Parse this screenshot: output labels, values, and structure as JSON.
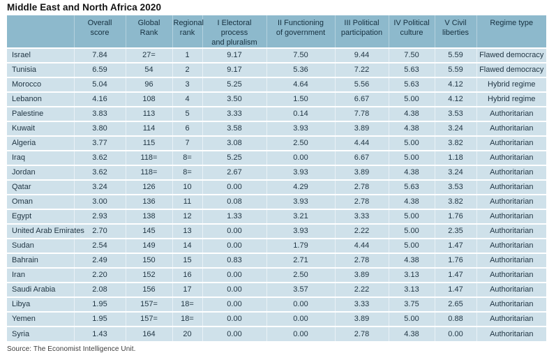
{
  "title": "Middle East and North Africa 2020",
  "source": "Source: The Economist Intelligence Unit.",
  "colors": {
    "header_bg": "#8db9cc",
    "row_bg": "#cfe1ea",
    "text": "#1f3442",
    "title_text": "#121212",
    "separator": "#ffffff"
  },
  "table": {
    "headers": [
      "",
      "Overall\nscore",
      "Global\nRank",
      "Regional\nrank",
      "I Electoral process\nand pluralism",
      "II Functioning\nof government",
      "III Political\nparticipation",
      "IV Political\nculture",
      "V Civil\nliberties",
      "Regime type"
    ],
    "rows": [
      [
        "Israel",
        "7.84",
        "27=",
        "1",
        "9.17",
        "7.50",
        "9.44",
        "7.50",
        "5.59",
        "Flawed democracy"
      ],
      [
        "Tunisia",
        "6.59",
        "54",
        "2",
        "9.17",
        "5.36",
        "7.22",
        "5.63",
        "5.59",
        "Flawed democracy"
      ],
      [
        "Morocco",
        "5.04",
        "96",
        "3",
        "5.25",
        "4.64",
        "5.56",
        "5.63",
        "4.12",
        "Hybrid regime"
      ],
      [
        "Lebanon",
        "4.16",
        "108",
        "4",
        "3.50",
        "1.50",
        "6.67",
        "5.00",
        "4.12",
        "Hybrid regime"
      ],
      [
        "Palestine",
        "3.83",
        "113",
        "5",
        "3.33",
        "0.14",
        "7.78",
        "4.38",
        "3.53",
        "Authoritarian"
      ],
      [
        "Kuwait",
        "3.80",
        "114",
        "6",
        "3.58",
        "3.93",
        "3.89",
        "4.38",
        "3.24",
        "Authoritarian"
      ],
      [
        "Algeria",
        "3.77",
        "115",
        "7",
        "3.08",
        "2.50",
        "4.44",
        "5.00",
        "3.82",
        "Authoritarian"
      ],
      [
        "Iraq",
        "3.62",
        "118=",
        "8=",
        "5.25",
        "0.00",
        "6.67",
        "5.00",
        "1.18",
        "Authoritarian"
      ],
      [
        "Jordan",
        "3.62",
        "118=",
        "8=",
        "2.67",
        "3.93",
        "3.89",
        "4.38",
        "3.24",
        "Authoritarian"
      ],
      [
        "Qatar",
        "3.24",
        "126",
        "10",
        "0.00",
        "4.29",
        "2.78",
        "5.63",
        "3.53",
        "Authoritarian"
      ],
      [
        "Oman",
        "3.00",
        "136",
        "11",
        "0.08",
        "3.93",
        "2.78",
        "4.38",
        "3.82",
        "Authoritarian"
      ],
      [
        "Egypt",
        "2.93",
        "138",
        "12",
        "1.33",
        "3.21",
        "3.33",
        "5.00",
        "1.76",
        "Authoritarian"
      ],
      [
        "United Arab Emirates",
        "2.70",
        "145",
        "13",
        "0.00",
        "3.93",
        "2.22",
        "5.00",
        "2.35",
        "Authoritarian"
      ],
      [
        "Sudan",
        "2.54",
        "149",
        "14",
        "0.00",
        "1.79",
        "4.44",
        "5.00",
        "1.47",
        "Authoritarian"
      ],
      [
        "Bahrain",
        "2.49",
        "150",
        "15",
        "0.83",
        "2.71",
        "2.78",
        "4.38",
        "1.76",
        "Authoritarian"
      ],
      [
        "Iran",
        "2.20",
        "152",
        "16",
        "0.00",
        "2.50",
        "3.89",
        "3.13",
        "1.47",
        "Authoritarian"
      ],
      [
        "Saudi Arabia",
        "2.08",
        "156",
        "17",
        "0.00",
        "3.57",
        "2.22",
        "3.13",
        "1.47",
        "Authoritarian"
      ],
      [
        "Libya",
        "1.95",
        "157=",
        "18=",
        "0.00",
        "0.00",
        "3.33",
        "3.75",
        "2.65",
        "Authoritarian"
      ],
      [
        "Yemen",
        "1.95",
        "157=",
        "18=",
        "0.00",
        "0.00",
        "3.89",
        "5.00",
        "0.88",
        "Authoritarian"
      ],
      [
        "Syria",
        "1.43",
        "164",
        "20",
        "0.00",
        "0.00",
        "2.78",
        "4.38",
        "0.00",
        "Authoritarian"
      ]
    ]
  }
}
